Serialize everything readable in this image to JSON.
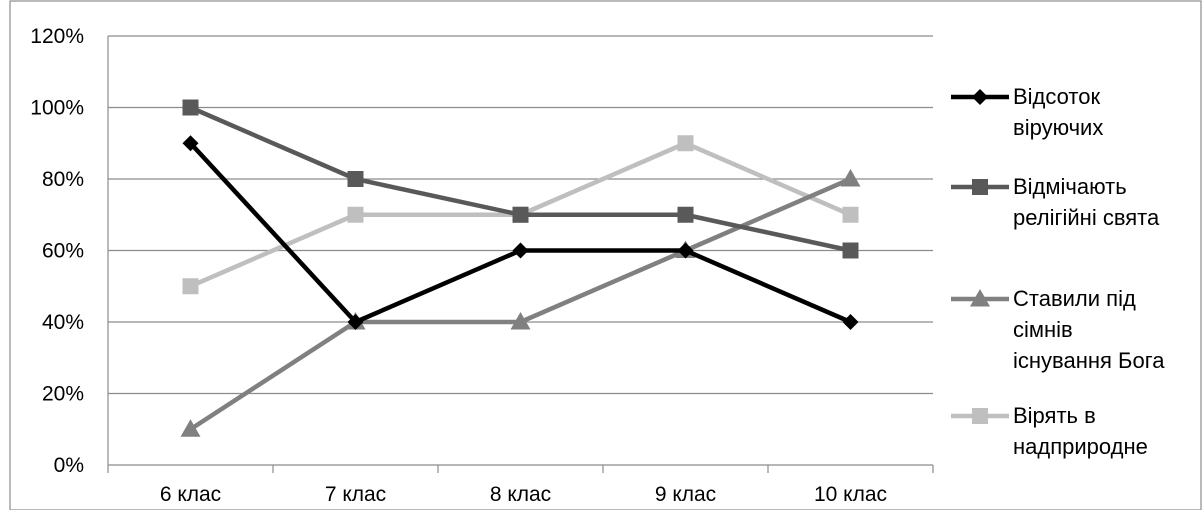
{
  "chart_data": {
    "type": "line",
    "title": "",
    "xlabel": "",
    "ylabel": "",
    "categories": [
      "6 клас",
      "7 клас",
      "8 клас",
      "9 клас",
      "10 клас"
    ],
    "y_ticks": [
      "0%",
      "20%",
      "40%",
      "60%",
      "80%",
      "100%",
      "120%"
    ],
    "ylim": [
      0,
      120
    ],
    "grid": true,
    "legend_position": "right",
    "series": [
      {
        "name": "Відсоток віруючих",
        "legend_lines": [
          "Відсоток",
          "віруючих"
        ],
        "values": [
          90,
          40,
          60,
          60,
          40
        ],
        "color": "#000000",
        "marker": "diamond"
      },
      {
        "name": "Відмічають релігійні свята",
        "legend_lines": [
          "Відмічають",
          "релігійні свята"
        ],
        "values": [
          100,
          80,
          70,
          70,
          60
        ],
        "color": "#595959",
        "marker": "square"
      },
      {
        "name": "Ставили під сімнів існування Бога",
        "legend_lines": [
          "Ставили під",
          "сімнів",
          "існування Бога"
        ],
        "values": [
          10,
          40,
          40,
          60,
          80
        ],
        "color": "#808080",
        "marker": "triangle"
      },
      {
        "name": "Вірять в надприродне",
        "legend_lines": [
          "Вірять в",
          "надприродне"
        ],
        "values": [
          50,
          70,
          70,
          90,
          70
        ],
        "color": "#bfbfbf",
        "marker": "square"
      }
    ]
  }
}
